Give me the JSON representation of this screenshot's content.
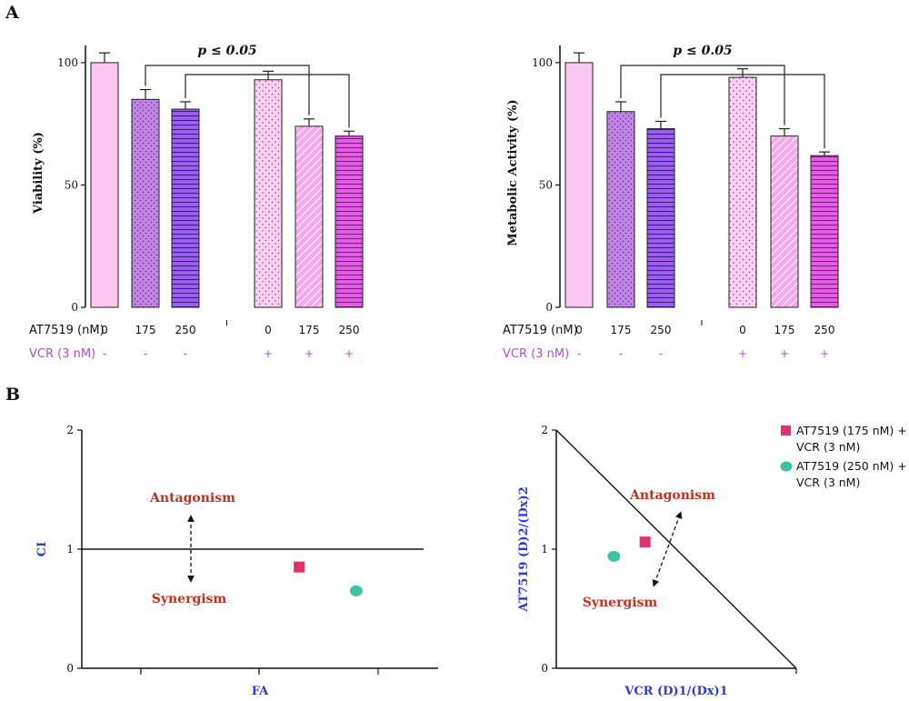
{
  "panels": {
    "a": "A",
    "b": "B"
  },
  "chart_data": [
    {
      "type": "bar",
      "ylabel": "Viability (%)",
      "yticks": [
        0,
        50,
        100
      ],
      "ylim": [
        0,
        110
      ],
      "categories": [
        "0",
        "175",
        "250",
        "0",
        "175",
        "250"
      ],
      "row1_label": "AT7519 (nM)",
      "row2_label": "VCR (3 nM)",
      "vcr_signs": [
        "-",
        "-",
        "-",
        "+",
        "+",
        "+"
      ],
      "values": [
        100,
        85,
        81,
        93,
        74,
        70
      ],
      "errors": [
        4,
        4,
        3,
        3.5,
        3,
        2
      ],
      "significance": "p ≤ 0.05",
      "brackets": [
        [
          1,
          4
        ],
        [
          2,
          5
        ]
      ]
    },
    {
      "type": "bar",
      "ylabel": "Metabolic Activity (%)",
      "yticks": [
        0,
        50,
        100
      ],
      "ylim": [
        0,
        110
      ],
      "categories": [
        "0",
        "175",
        "250",
        "0",
        "175",
        "250"
      ],
      "row1_label": "AT7519 (nM)",
      "row2_label": "VCR (3 nM)",
      "vcr_signs": [
        "-",
        "-",
        "-",
        "+",
        "+",
        "+"
      ],
      "values": [
        100,
        80,
        73,
        94,
        70,
        62
      ],
      "errors": [
        4,
        4,
        3,
        3.5,
        3,
        1.5
      ],
      "significance": "p ≤ 0.05",
      "brackets": [
        [
          1,
          4
        ],
        [
          2,
          5
        ]
      ]
    },
    {
      "type": "scatter",
      "xlabel": "FA",
      "ylabel": "CI",
      "yticks": [
        0,
        1,
        2
      ],
      "ylim": [
        0,
        2
      ],
      "xlim": [
        0,
        1.0
      ],
      "reference_line": 1,
      "region_labels": {
        "above": "Antagonism",
        "below": "Synergism"
      },
      "points": [
        {
          "series": 0,
          "x": 0.61,
          "y": 0.85
        },
        {
          "series": 1,
          "x": 0.77,
          "y": 0.65
        }
      ]
    },
    {
      "type": "scatter",
      "xlabel": "VCR (D)1/(Dx)1",
      "ylabel": "AT7519 (D)2/(Dx)2",
      "yticks": [
        0,
        1,
        2
      ],
      "ylim": [
        0,
        2
      ],
      "xlim": [
        0,
        1.0
      ],
      "region_labels": {
        "above": "Antagonism",
        "below": "Synergism"
      },
      "points": [
        {
          "series": 0,
          "x": 0.37,
          "y": 1.06
        },
        {
          "series": 1,
          "x": 0.24,
          "y": 0.94
        }
      ]
    }
  ],
  "legend": [
    {
      "line1": "AT7519 (175 nM) +",
      "line2": "VCR (3 nM)",
      "color": "#e0306e",
      "shape": "square"
    },
    {
      "line1": "AT7519 (250 nM) +",
      "line2": "VCR (3 nM)",
      "color": "#3dc4a4",
      "shape": "circle"
    }
  ],
  "bar_fills": [
    "#fbc6f2",
    "#c486e6",
    "#9a5ef0",
    "#fbd0f3",
    "#f6a8ea",
    "#e35ce6"
  ],
  "bar_patterns": [
    "solid",
    "dots",
    "hlines",
    "dots-sparse",
    "diag",
    "hlines"
  ]
}
